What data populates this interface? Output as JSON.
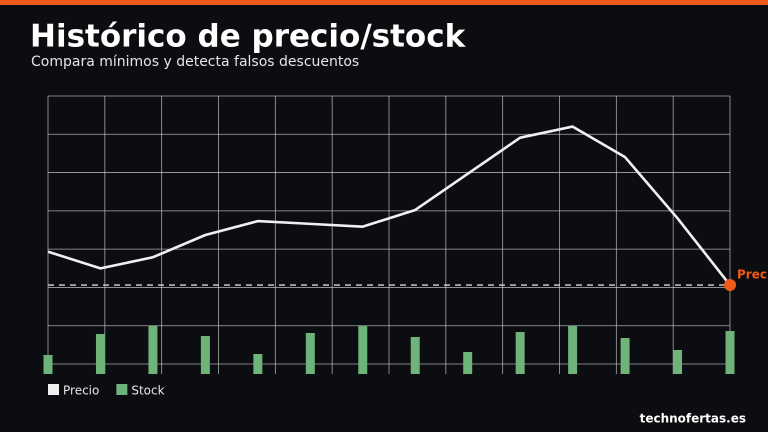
{
  "chart_data": {
    "type": "line",
    "title": "Histórico de precio/stock",
    "subtitle": "Compara mínimos y detecta falsos descuentos",
    "categories": [
      null,
      null,
      null,
      null,
      null,
      null,
      null,
      null,
      null,
      null,
      null,
      null,
      null,
      null
    ],
    "series": [
      {
        "name": "Precio",
        "color": "#f0f0f0",
        "values": [
          44,
          38,
          42,
          50,
          55,
          54,
          53,
          59,
          72,
          85,
          89,
          78,
          56,
          32
        ]
      },
      {
        "name": "Stock",
        "color": "#6db37a",
        "axis": "y2",
        "type": "bar",
        "values": [
          19,
          40,
          48,
          38,
          20,
          41,
          48,
          37,
          22,
          42,
          48,
          36,
          24,
          43
        ]
      }
    ],
    "ylim": [
      0,
      100
    ],
    "y2lim": [
      0,
      278
    ],
    "reference_line": {
      "value": 32,
      "label": "Prec",
      "color": "#f05a1a"
    },
    "grid": true,
    "legend": "bottom-left",
    "footer": "technofertas.es",
    "accent_color": "#f05a1a"
  }
}
